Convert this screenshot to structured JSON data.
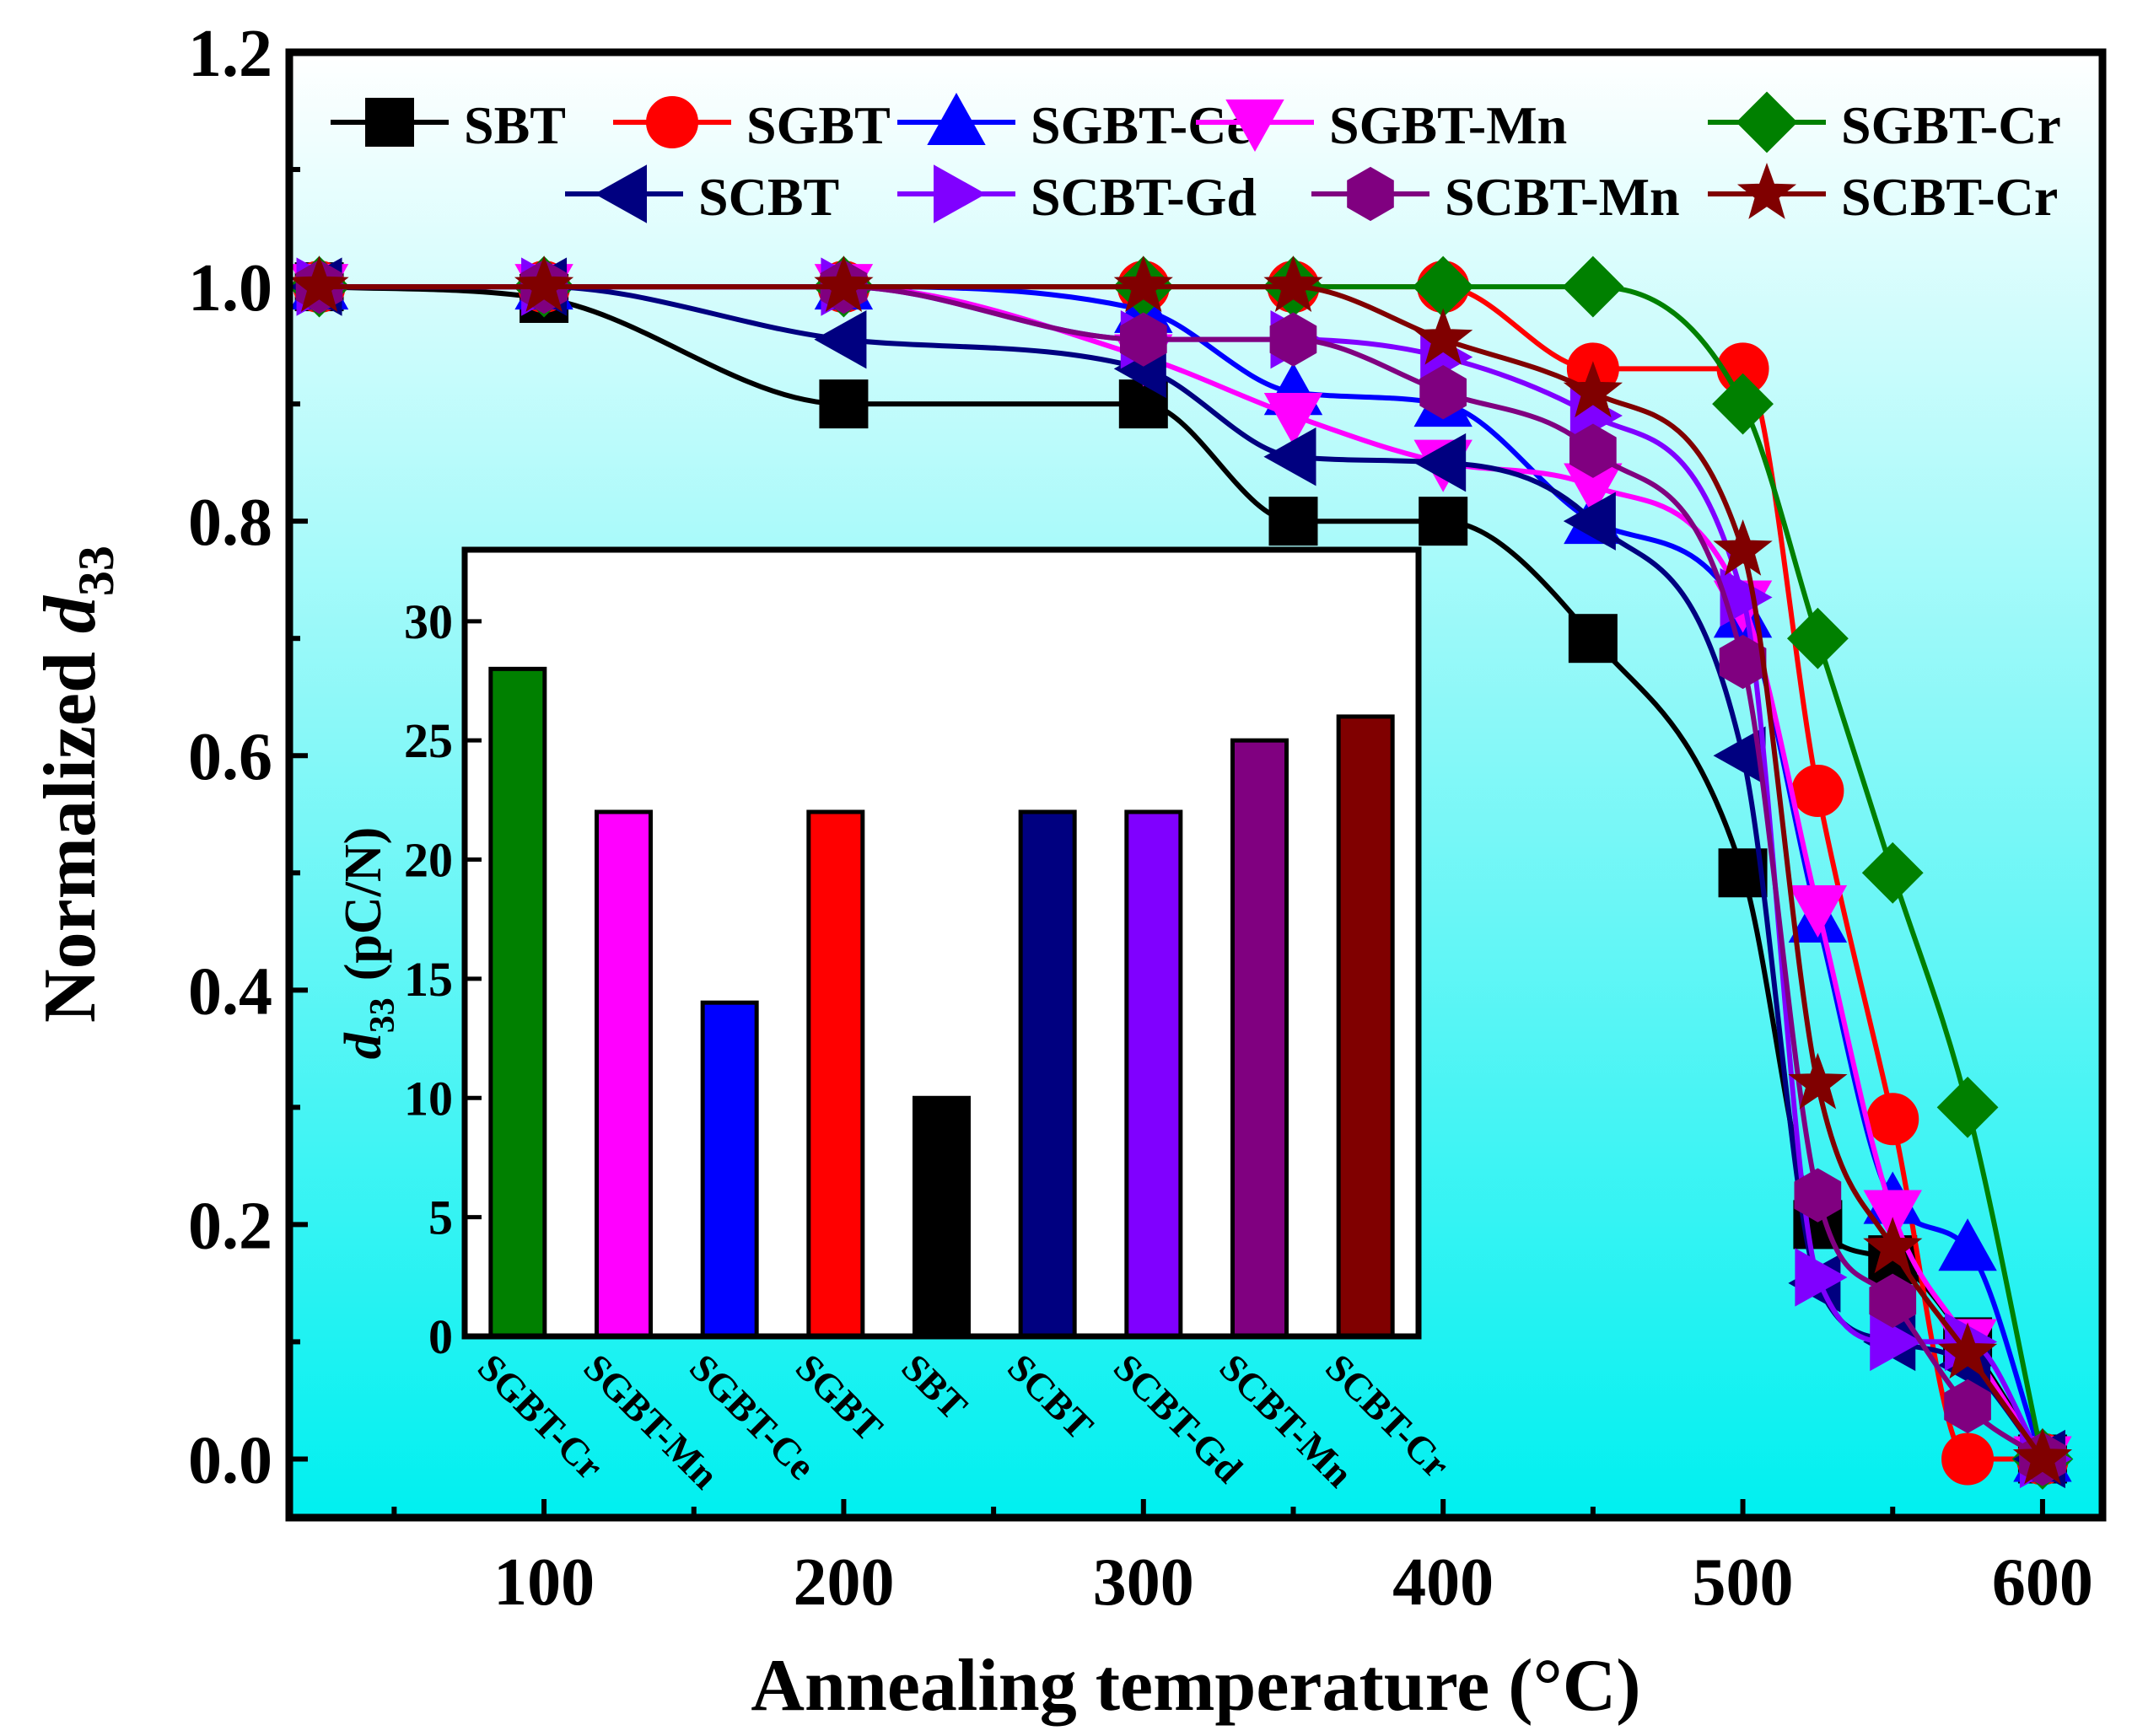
{
  "chart_data": [
    {
      "type": "line",
      "title": "",
      "xlabel": "Annealing temperature (°C)",
      "ylabel_main": "Normalized ",
      "ylabel_italic": "d",
      "ylabel_sub": "33",
      "xlim": [
        15,
        620
      ],
      "ylim": [
        -0.05,
        1.2
      ],
      "xticks": [
        100,
        200,
        300,
        400,
        500,
        600
      ],
      "xtick_labels": [
        "100",
        "200",
        "300",
        "400",
        "500",
        "600"
      ],
      "yticks": [
        0.0,
        0.2,
        0.4,
        0.6,
        0.8,
        1.0,
        1.2
      ],
      "ytick_labels": [
        "0.0",
        "0.2",
        "0.4",
        "0.6",
        "0.8",
        "1.0",
        "1.2"
      ],
      "legend_position": "top",
      "background_gradient": [
        "#ffffff",
        "#00f0f0"
      ],
      "series": [
        {
          "name": "SBT",
          "color": "#000000",
          "marker": "square",
          "x": [
            25,
            100,
            200,
            300,
            350,
            400,
            450,
            500,
            525,
            550,
            575,
            600
          ],
          "y": [
            1.0,
            0.99,
            0.9,
            0.9,
            0.8,
            0.8,
            0.7,
            0.5,
            0.2,
            0.17,
            0.1,
            0.0
          ]
        },
        {
          "name": "SGBT",
          "color": "#ff0000",
          "marker": "circle",
          "x": [
            25,
            100,
            200,
            300,
            350,
            400,
            450,
            500,
            525,
            550,
            575,
            600
          ],
          "y": [
            1.0,
            1.0,
            1.0,
            1.0,
            1.0,
            1.0,
            0.93,
            0.93,
            0.57,
            0.29,
            0.0,
            0.0
          ]
        },
        {
          "name": "SGBT-Ce",
          "color": "#0000ff",
          "marker": "triangle-up",
          "x": [
            25,
            100,
            200,
            300,
            350,
            400,
            450,
            500,
            525,
            550,
            575,
            600
          ],
          "y": [
            1.0,
            1.0,
            1.0,
            0.98,
            0.91,
            0.9,
            0.8,
            0.72,
            0.46,
            0.22,
            0.18,
            0.0
          ]
        },
        {
          "name": "SGBT-Mn",
          "color": "#ff00ff",
          "marker": "triangle-down",
          "x": [
            25,
            100,
            200,
            300,
            350,
            400,
            450,
            500,
            525,
            550,
            575,
            600
          ],
          "y": [
            1.0,
            1.0,
            1.0,
            0.94,
            0.89,
            0.85,
            0.83,
            0.73,
            0.47,
            0.21,
            0.1,
            0.0
          ]
        },
        {
          "name": "SGBT-Cr",
          "color": "#008000",
          "marker": "diamond",
          "x": [
            25,
            100,
            200,
            300,
            350,
            400,
            450,
            500,
            525,
            550,
            575,
            600
          ],
          "y": [
            1.0,
            1.0,
            1.0,
            1.0,
            1.0,
            1.0,
            1.0,
            0.9,
            0.7,
            0.5,
            0.3,
            0.0
          ]
        },
        {
          "name": "SCBT",
          "color": "#000080",
          "marker": "triangle-left",
          "x": [
            25,
            100,
            200,
            300,
            350,
            400,
            450,
            500,
            525,
            550,
            575,
            600
          ],
          "y": [
            1.0,
            1.0,
            0.955,
            0.93,
            0.855,
            0.85,
            0.8,
            0.6,
            0.15,
            0.1,
            0.08,
            0.0
          ]
        },
        {
          "name": "SCBT-Gd",
          "color": "#8000ff",
          "marker": "triangle-right",
          "x": [
            25,
            100,
            200,
            300,
            350,
            400,
            450,
            500,
            525,
            550,
            575,
            600
          ],
          "y": [
            1.0,
            1.0,
            1.0,
            0.955,
            0.955,
            0.94,
            0.89,
            0.735,
            0.155,
            0.1,
            0.1,
            0.0
          ]
        },
        {
          "name": "SCBT-Mn",
          "color": "#800080",
          "marker": "hexagon",
          "x": [
            25,
            100,
            200,
            300,
            350,
            400,
            450,
            500,
            525,
            550,
            575,
            600
          ],
          "y": [
            1.0,
            1.0,
            1.0,
            0.955,
            0.955,
            0.91,
            0.86,
            0.68,
            0.225,
            0.135,
            0.045,
            0.0
          ]
        },
        {
          "name": "SCBT-Cr",
          "color": "#800000",
          "marker": "star",
          "x": [
            25,
            100,
            200,
            300,
            350,
            400,
            450,
            500,
            525,
            550,
            575,
            600
          ],
          "y": [
            1.0,
            1.0,
            1.0,
            1.0,
            1.0,
            0.955,
            0.91,
            0.775,
            0.32,
            0.18,
            0.09,
            0.0
          ]
        }
      ]
    },
    {
      "type": "bar",
      "title": "",
      "xlabel": "",
      "ylabel_italic": "d",
      "ylabel_sub": "33",
      "ylabel_units": "(pC/N)",
      "ylim": [
        0,
        33
      ],
      "yticks": [
        0,
        5,
        10,
        15,
        20,
        25,
        30
      ],
      "ytick_labels": [
        "0",
        "5",
        "10",
        "15",
        "20",
        "25",
        "30"
      ],
      "categories": [
        "SGBT-Cr",
        "SGBT-Mn",
        "SGBT-Ce",
        "SGBT",
        "SBT",
        "SCBT",
        "SCBT-Gd",
        "SCBT-Mn",
        "SCBT-Cr"
      ],
      "values": [
        28,
        22,
        14,
        22,
        10,
        22,
        22,
        25,
        26
      ],
      "colors": [
        "#008000",
        "#ff00ff",
        "#0000ff",
        "#ff0000",
        "#000000",
        "#000080",
        "#8000ff",
        "#800080",
        "#800000"
      ]
    }
  ]
}
